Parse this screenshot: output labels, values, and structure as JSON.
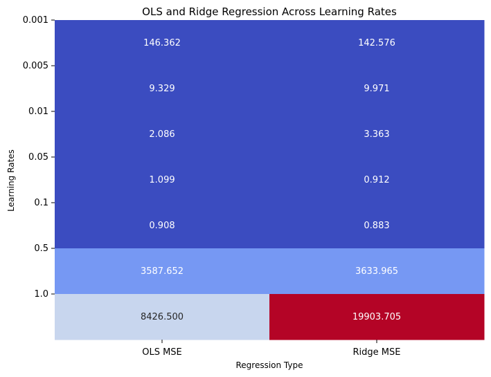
{
  "chart_data": {
    "type": "heatmap",
    "title": "OLS and Ridge Regression Across Learning Rates",
    "xlabel": "Regression Type",
    "ylabel": "Learning Rates",
    "columns": [
      "OLS MSE",
      "Ridge MSE"
    ],
    "rows": [
      "0.001",
      "0.005",
      "0.01",
      "0.05",
      "0.1",
      "0.5",
      "1.0"
    ],
    "values": [
      [
        146.362,
        142.576
      ],
      [
        9.329,
        9.971
      ],
      [
        2.086,
        3.363
      ],
      [
        1.099,
        0.912
      ],
      [
        0.908,
        0.883
      ],
      [
        3587.652,
        3633.965
      ],
      [
        8426.5,
        19903.705
      ]
    ],
    "cell_labels": [
      [
        "146.362",
        "142.576"
      ],
      [
        "9.329",
        "9.971"
      ],
      [
        "2.086",
        "3.363"
      ],
      [
        "1.099",
        "0.912"
      ],
      [
        "0.908",
        "0.883"
      ],
      [
        "3587.652",
        "3633.965"
      ],
      [
        "8426.500",
        "19903.705"
      ]
    ],
    "colormap": "coolwarm",
    "cell_colors": [
      [
        "#3b4cc0",
        "#3b4cc0"
      ],
      [
        "#3b4cc0",
        "#3b4cc0"
      ],
      [
        "#3b4cc0",
        "#3b4cc0"
      ],
      [
        "#3b4cc0",
        "#3b4cc0"
      ],
      [
        "#3b4cc0",
        "#3b4cc0"
      ],
      [
        "#7698f3",
        "#7698f3"
      ],
      [
        "#c8d6ee",
        "#b40426"
      ]
    ],
    "light_text_color": "#ffffff",
    "dark_text_color": "#262626",
    "colorbar": false,
    "grid": false
  }
}
